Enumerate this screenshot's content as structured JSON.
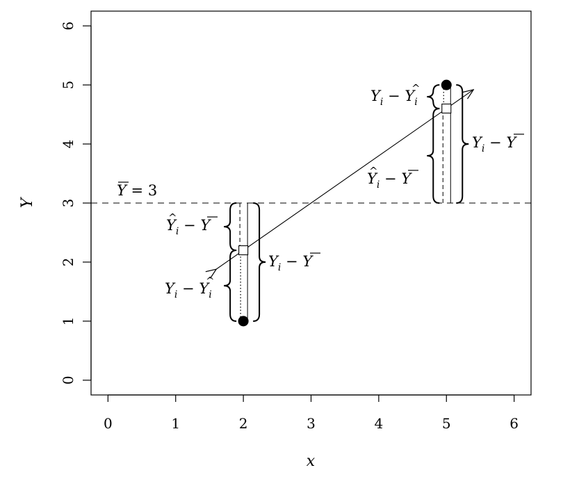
{
  "chart_data": {
    "type": "scatter",
    "xlabel": "x",
    "ylabel": "Y",
    "xlim": [
      -0.25,
      6.25
    ],
    "ylim": [
      -0.25,
      6.25
    ],
    "xticks": [
      "0",
      "1",
      "2",
      "3",
      "4",
      "5",
      "6"
    ],
    "yticks": [
      "0",
      "1",
      "2",
      "3",
      "4",
      "5",
      "6"
    ],
    "grid": false,
    "legend": "none",
    "observed_points": [
      {
        "x": 2,
        "y": 1
      },
      {
        "x": 5,
        "y": 5
      }
    ],
    "fitted_points": [
      {
        "x": 2,
        "y": 2.2
      },
      {
        "x": 5,
        "y": 4.6
      }
    ],
    "regression_line": {
      "x": [
        1.6,
        5.4
      ],
      "y": [
        1.88,
        4.92
      ]
    },
    "mean_line": {
      "y": 3,
      "style": "dashed"
    },
    "annotations": {
      "ybar": {
        "main": "Y",
        "rest": " = 3"
      },
      "left_resid": {
        "main": "Y",
        "sub": "i",
        "minus": " − ",
        "main2": "Y",
        "sub2": "i"
      },
      "left_fit": {
        "main": "Y",
        "sub": "i",
        "minus": " − ",
        "main2": "Y"
      },
      "left_total": {
        "main": "Y",
        "sub": "i",
        "minus": " − ",
        "main2": "Y"
      },
      "right_resid": {
        "main": "Y",
        "sub": "i",
        "minus": " − ",
        "main2": "Y",
        "sub2": "i"
      },
      "right_fit": {
        "main": "Y",
        "sub": "i",
        "minus": " − ",
        "main2": "Y"
      },
      "right_total": {
        "main": "Y",
        "sub": "i",
        "minus": " − ",
        "main2": "Y"
      }
    }
  }
}
